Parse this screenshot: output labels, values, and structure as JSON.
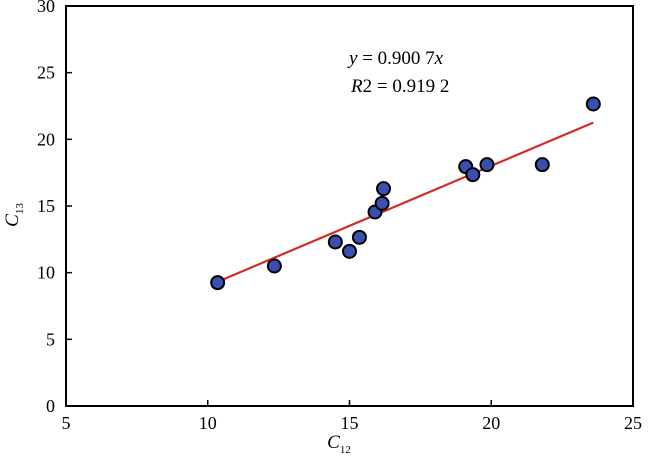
{
  "chart_data": {
    "type": "scatter",
    "title": "",
    "xlabel": {
      "main": "C",
      "sub": "12"
    },
    "ylabel": {
      "main": "C",
      "sub": "13"
    },
    "xlim": [
      5,
      25
    ],
    "ylim": [
      0,
      30
    ],
    "xticks": [
      "5",
      "10",
      "15",
      "20",
      "25"
    ],
    "yticks": [
      "0",
      "5",
      "10",
      "15",
      "20",
      "25",
      "30"
    ],
    "grid": false,
    "series": [
      {
        "points": [
          {
            "x": 10.35,
            "y": 9.25
          },
          {
            "x": 12.35,
            "y": 10.5
          },
          {
            "x": 14.5,
            "y": 12.3
          },
          {
            "x": 15.0,
            "y": 11.6
          },
          {
            "x": 15.35,
            "y": 12.65
          },
          {
            "x": 15.9,
            "y": 14.55
          },
          {
            "x": 16.15,
            "y": 15.2
          },
          {
            "x": 16.2,
            "y": 16.3
          },
          {
            "x": 19.1,
            "y": 17.95
          },
          {
            "x": 19.35,
            "y": 17.35
          },
          {
            "x": 19.85,
            "y": 18.1
          },
          {
            "x": 21.8,
            "y": 18.1
          },
          {
            "x": 23.6,
            "y": 22.65
          }
        ],
        "marker_color": "#3950b0",
        "marker_edge": "#000000"
      }
    ],
    "fit_line": {
      "slope": 0.9007,
      "x_range": [
        10.35,
        23.6
      ],
      "color": "#d42a2a"
    },
    "annotations": {
      "equation": {
        "lhs": "y",
        "rhs": " = 0.900 7",
        "var": "x"
      },
      "r2": {
        "lhs": "R",
        "sup": "2",
        "rhs": " = 0.919 2"
      }
    }
  }
}
